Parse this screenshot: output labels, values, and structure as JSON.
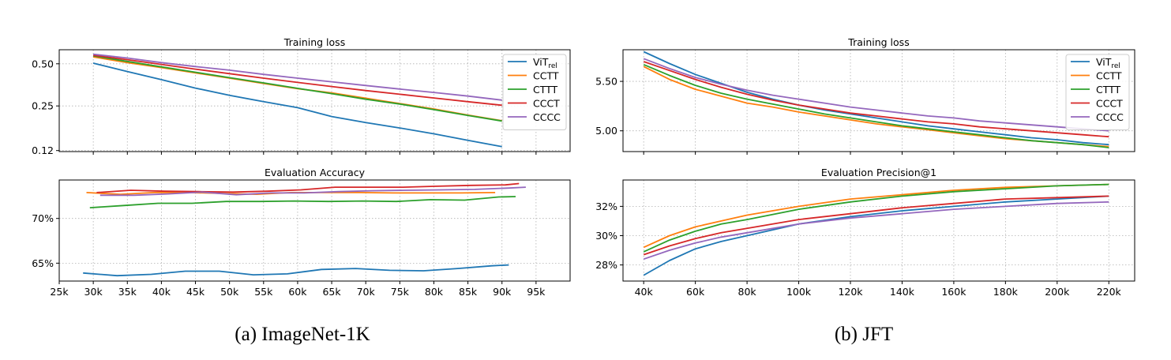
{
  "captions": {
    "a": "(a) ImageNet-1K",
    "b": "(b) JFT"
  },
  "colors": {
    "ViT_rel": "#1f77b4",
    "CCTT": "#ff7f0e",
    "CTTT": "#2ca02c",
    "CCCT": "#d62728",
    "CCCC": "#9467bd"
  },
  "chart_data": [
    {
      "id": "in_loss",
      "type": "line",
      "title": "Training loss",
      "xlabel": "",
      "ylabel": "",
      "yscale": "log",
      "xlim": [
        25000,
        100000
      ],
      "ylim": [
        0.118,
        0.63
      ],
      "x_ticks": [
        30000,
        35000,
        40000,
        45000,
        50000,
        55000,
        60000,
        65000,
        70000,
        75000,
        80000,
        85000,
        90000,
        95000
      ],
      "y_ticks": [
        0.12,
        0.25,
        0.5
      ],
      "y_tick_labels": [
        "0.12",
        "0.25",
        "0.50"
      ],
      "show_x_labels": false,
      "grid": true,
      "legend": "top-right",
      "series": [
        {
          "name": "ViT_rel",
          "x": [
            30000,
            35000,
            40000,
            45000,
            50000,
            55000,
            60000,
            65000,
            70000,
            75000,
            80000,
            85000,
            90000
          ],
          "values": [
            0.505,
            0.44,
            0.385,
            0.335,
            0.298,
            0.268,
            0.243,
            0.21,
            0.19,
            0.174,
            0.158,
            0.142,
            0.128
          ]
        },
        {
          "name": "CCTT",
          "x": [
            30000,
            35000,
            40000,
            45000,
            50000,
            55000,
            60000,
            65000,
            70000,
            75000,
            80000,
            85000,
            90000
          ],
          "values": [
            0.56,
            0.51,
            0.47,
            0.43,
            0.395,
            0.362,
            0.332,
            0.31,
            0.284,
            0.26,
            0.238,
            0.215,
            0.196
          ]
        },
        {
          "name": "CTTT",
          "x": [
            30000,
            35000,
            40000,
            45000,
            50000,
            55000,
            60000,
            65000,
            70000,
            75000,
            80000,
            85000,
            90000
          ],
          "values": [
            0.57,
            0.52,
            0.475,
            0.435,
            0.398,
            0.365,
            0.334,
            0.306,
            0.279,
            0.258,
            0.235,
            0.214,
            0.195
          ]
        },
        {
          "name": "CCCT",
          "x": [
            30000,
            35000,
            40000,
            45000,
            50000,
            55000,
            60000,
            65000,
            70000,
            75000,
            80000,
            85000,
            90000
          ],
          "values": [
            0.575,
            0.535,
            0.495,
            0.458,
            0.425,
            0.395,
            0.368,
            0.344,
            0.322,
            0.303,
            0.285,
            0.268,
            0.253
          ]
        },
        {
          "name": "CCCC",
          "x": [
            30000,
            35000,
            40000,
            45000,
            50000,
            55000,
            60000,
            65000,
            70000,
            75000,
            80000,
            85000,
            90000
          ],
          "values": [
            0.585,
            0.55,
            0.51,
            0.478,
            0.45,
            0.42,
            0.395,
            0.372,
            0.35,
            0.33,
            0.312,
            0.294,
            0.275
          ]
        }
      ]
    },
    {
      "id": "in_acc",
      "type": "line",
      "title": "Evaluation Accuracy",
      "xlabel": "",
      "ylabel": "",
      "xlim": [
        25000,
        100000
      ],
      "ylim": [
        63.0,
        74.3
      ],
      "x_ticks": [
        25000,
        30000,
        35000,
        40000,
        45000,
        50000,
        55000,
        60000,
        65000,
        70000,
        75000,
        80000,
        85000,
        90000,
        95000
      ],
      "x_tick_labels": [
        "25k",
        "30k",
        "35k",
        "40k",
        "45k",
        "50k",
        "55k",
        "60k",
        "65k",
        "70k",
        "75k",
        "80k",
        "85k",
        "90k",
        "95k"
      ],
      "y_ticks": [
        65,
        70
      ],
      "y_tick_labels": [
        "65%",
        "70%"
      ],
      "grid": true,
      "series": [
        {
          "name": "ViT_rel",
          "x": [
            28500,
            33500,
            38500,
            43500,
            48500,
            53500,
            58500,
            63500,
            68500,
            73500,
            78500,
            83500,
            88500,
            91000
          ],
          "values": [
            63.9,
            63.6,
            63.75,
            64.1,
            64.1,
            63.7,
            63.8,
            64.3,
            64.4,
            64.2,
            64.15,
            64.4,
            64.7,
            64.8
          ]
        },
        {
          "name": "CCTT",
          "x": [
            29000,
            34000,
            39000,
            44000,
            49000,
            54000,
            59000,
            64000,
            69000,
            74000,
            79000,
            84000,
            89000
          ],
          "values": [
            72.9,
            72.7,
            72.9,
            72.9,
            72.8,
            72.7,
            72.9,
            72.9,
            72.9,
            72.85,
            72.85,
            72.85,
            72.9
          ]
        },
        {
          "name": "CTTT",
          "x": [
            29500,
            34500,
            39500,
            44500,
            49500,
            54500,
            59500,
            64500,
            69500,
            74500,
            79500,
            84500,
            89500,
            92000
          ],
          "values": [
            71.2,
            71.45,
            71.7,
            71.7,
            71.9,
            71.9,
            71.95,
            71.9,
            71.95,
            71.9,
            72.1,
            72.05,
            72.4,
            72.45
          ]
        },
        {
          "name": "CCCT",
          "x": [
            30500,
            35500,
            40500,
            45500,
            50500,
            55500,
            60500,
            65500,
            70500,
            75500,
            80500,
            85500,
            90500,
            92500
          ],
          "values": [
            72.9,
            73.15,
            73.05,
            73.0,
            72.95,
            73.05,
            73.2,
            73.5,
            73.5,
            73.5,
            73.6,
            73.7,
            73.75,
            73.9
          ]
        },
        {
          "name": "CCCC",
          "x": [
            31000,
            36000,
            41000,
            46000,
            51000,
            56000,
            61000,
            66000,
            71000,
            76000,
            81000,
            86000,
            91000,
            93500
          ],
          "values": [
            72.6,
            72.6,
            72.75,
            72.95,
            72.65,
            72.85,
            72.85,
            73.0,
            73.1,
            73.15,
            73.2,
            73.25,
            73.4,
            73.5
          ]
        }
      ]
    },
    {
      "id": "jft_loss",
      "type": "line",
      "title": "Training loss",
      "xlabel": "",
      "ylabel": "",
      "xlim": [
        32000,
        230000
      ],
      "ylim": [
        4.79,
        5.82
      ],
      "x_ticks": [
        40000,
        60000,
        80000,
        100000,
        120000,
        140000,
        160000,
        180000,
        200000,
        220000
      ],
      "y_ticks": [
        5.0,
        5.5
      ],
      "y_tick_labels": [
        "5.00",
        "5.50"
      ],
      "show_x_labels": false,
      "grid": true,
      "legend": "top-right",
      "series": [
        {
          "name": "ViT_rel",
          "x": [
            40000,
            50000,
            60000,
            70000,
            80000,
            90000,
            100000,
            110000,
            120000,
            130000,
            140000,
            150000,
            160000,
            170000,
            180000,
            190000,
            200000,
            210000,
            220000
          ],
          "values": [
            5.8,
            5.68,
            5.57,
            5.48,
            5.39,
            5.32,
            5.26,
            5.21,
            5.17,
            5.13,
            5.09,
            5.05,
            5.02,
            4.99,
            4.96,
            4.93,
            4.91,
            4.88,
            4.86
          ]
        },
        {
          "name": "CCTT",
          "x": [
            40000,
            50000,
            60000,
            70000,
            80000,
            90000,
            100000,
            110000,
            120000,
            130000,
            140000,
            150000,
            160000,
            170000,
            180000,
            190000,
            200000,
            210000,
            220000
          ],
          "values": [
            5.65,
            5.52,
            5.42,
            5.35,
            5.28,
            5.24,
            5.19,
            5.15,
            5.11,
            5.07,
            5.04,
            5.01,
            4.98,
            4.95,
            4.92,
            4.9,
            4.88,
            4.86,
            4.84
          ]
        },
        {
          "name": "CTTT",
          "x": [
            40000,
            50000,
            60000,
            70000,
            80000,
            90000,
            100000,
            110000,
            120000,
            130000,
            140000,
            150000,
            160000,
            170000,
            180000,
            190000,
            200000,
            210000,
            220000
          ],
          "values": [
            5.67,
            5.56,
            5.46,
            5.38,
            5.32,
            5.27,
            5.22,
            5.17,
            5.13,
            5.09,
            5.05,
            5.02,
            4.99,
            4.96,
            4.93,
            4.9,
            4.88,
            4.86,
            4.83
          ]
        },
        {
          "name": "CCCT",
          "x": [
            40000,
            50000,
            60000,
            70000,
            80000,
            90000,
            100000,
            110000,
            120000,
            130000,
            140000,
            150000,
            160000,
            170000,
            180000,
            190000,
            200000,
            210000,
            220000
          ],
          "values": [
            5.7,
            5.61,
            5.52,
            5.44,
            5.37,
            5.31,
            5.26,
            5.22,
            5.18,
            5.15,
            5.12,
            5.09,
            5.07,
            5.04,
            5.02,
            5.0,
            4.98,
            4.96,
            4.94
          ]
        },
        {
          "name": "CCCC",
          "x": [
            40000,
            50000,
            60000,
            70000,
            80000,
            90000,
            100000,
            110000,
            120000,
            130000,
            140000,
            150000,
            160000,
            170000,
            180000,
            190000,
            200000,
            210000,
            220000
          ],
          "values": [
            5.73,
            5.63,
            5.54,
            5.47,
            5.41,
            5.36,
            5.32,
            5.28,
            5.24,
            5.21,
            5.18,
            5.15,
            5.13,
            5.1,
            5.08,
            5.06,
            5.04,
            5.02,
            5.0
          ]
        }
      ]
    },
    {
      "id": "jft_prec",
      "type": "line",
      "title": "Evaluation Precision@1",
      "xlabel": "",
      "ylabel": "",
      "xlim": [
        32000,
        230000
      ],
      "ylim": [
        26.9,
        33.8
      ],
      "x_ticks": [
        40000,
        60000,
        80000,
        100000,
        120000,
        140000,
        160000,
        180000,
        200000,
        220000
      ],
      "x_tick_labels": [
        "40k",
        "60k",
        "80k",
        "100k",
        "120k",
        "140k",
        "160k",
        "180k",
        "200k",
        "220k"
      ],
      "y_ticks": [
        28,
        30,
        32
      ],
      "y_tick_labels": [
        "28%",
        "30%",
        "32%"
      ],
      "grid": true,
      "series": [
        {
          "name": "ViT_rel",
          "x": [
            40000,
            50000,
            60000,
            70000,
            80000,
            100000,
            120000,
            140000,
            160000,
            180000,
            200000,
            220000
          ],
          "values": [
            27.3,
            28.3,
            29.1,
            29.6,
            30.0,
            30.8,
            31.3,
            31.7,
            32.0,
            32.3,
            32.5,
            32.7
          ]
        },
        {
          "name": "CCTT",
          "x": [
            40000,
            50000,
            60000,
            70000,
            80000,
            100000,
            120000,
            140000,
            160000,
            180000,
            200000,
            220000
          ],
          "values": [
            29.2,
            30.0,
            30.6,
            31.0,
            31.4,
            32.0,
            32.5,
            32.8,
            33.1,
            33.3,
            33.4,
            33.5
          ]
        },
        {
          "name": "CTTT",
          "x": [
            40000,
            50000,
            60000,
            70000,
            80000,
            100000,
            120000,
            140000,
            160000,
            180000,
            200000,
            220000
          ],
          "values": [
            28.9,
            29.7,
            30.3,
            30.8,
            31.1,
            31.8,
            32.3,
            32.7,
            33.0,
            33.2,
            33.4,
            33.5
          ]
        },
        {
          "name": "CCCT",
          "x": [
            40000,
            50000,
            60000,
            70000,
            80000,
            100000,
            120000,
            140000,
            160000,
            180000,
            200000,
            220000
          ],
          "values": [
            28.7,
            29.3,
            29.8,
            30.2,
            30.5,
            31.1,
            31.5,
            31.9,
            32.2,
            32.5,
            32.6,
            32.7
          ]
        },
        {
          "name": "CCCC",
          "x": [
            40000,
            50000,
            60000,
            70000,
            80000,
            100000,
            120000,
            140000,
            160000,
            180000,
            200000,
            220000
          ],
          "values": [
            28.4,
            29.0,
            29.5,
            29.9,
            30.2,
            30.8,
            31.2,
            31.5,
            31.8,
            32.0,
            32.2,
            32.3
          ]
        }
      ]
    }
  ]
}
